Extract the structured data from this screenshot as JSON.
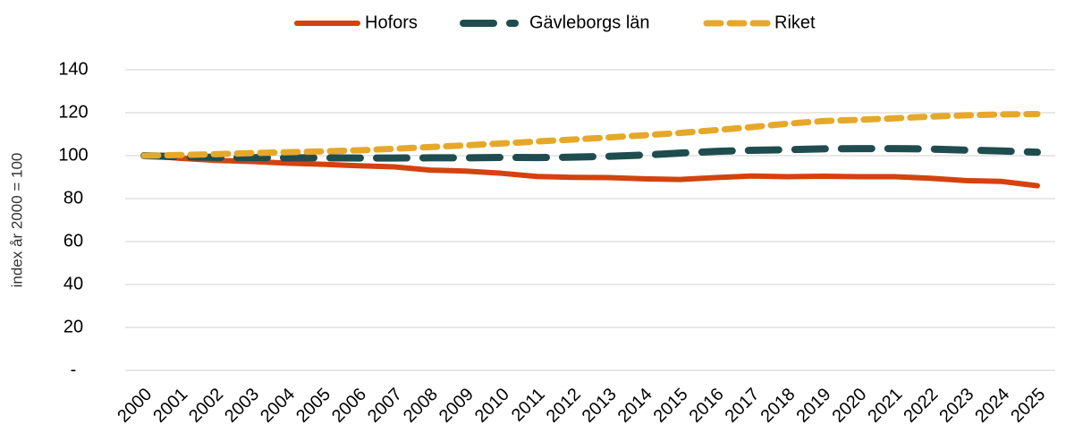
{
  "chart_data": {
    "type": "line",
    "y_label": "index år 2000 = 100",
    "categories": [
      "2000",
      "2001",
      "2002",
      "2003",
      "2004",
      "2005",
      "2006",
      "2007",
      "2008",
      "2009",
      "2010",
      "2011",
      "2012",
      "2013",
      "2014",
      "2015",
      "2016",
      "2017",
      "2018",
      "2019",
      "2020",
      "2021",
      "2022",
      "2023",
      "2024",
      "2025"
    ],
    "series": [
      {
        "name": "Hofors",
        "color": "#d4420f",
        "values": [
          100,
          98.8,
          97.8,
          97.3,
          96.5,
          96,
          95.3,
          94.8,
          93.3,
          92.8,
          91.8,
          90.3,
          89.9,
          89.8,
          89.2,
          88.9,
          89.8,
          90.5,
          90.2,
          90.4,
          90.2,
          90.2,
          89.5,
          88.4,
          88.0,
          86.0
        ]
      },
      {
        "name": "Gävleborgs län",
        "color": "#1f4d4f",
        "values": [
          100,
          99.5,
          99.2,
          99.1,
          99,
          99,
          98.9,
          98.9,
          99,
          99,
          99.2,
          99.1,
          99.3,
          99.7,
          100.3,
          101.2,
          102,
          102.5,
          102.8,
          103.2,
          103.3,
          103.3,
          103.1,
          102.6,
          102.2,
          101.6
        ]
      },
      {
        "name": "Riket",
        "color": "#e6a82a",
        "values": [
          100,
          100.3,
          100.7,
          101.2,
          101.6,
          102,
          102.5,
          103.2,
          104,
          104.8,
          105.7,
          106.6,
          107.5,
          108.5,
          109.5,
          110.6,
          111.9,
          113.3,
          114.9,
          116.1,
          116.7,
          117.4,
          118.2,
          118.8,
          119.2,
          119.4
        ]
      }
    ],
    "ylim": [
      0,
      140
    ],
    "yticks": [
      {
        "value": 0,
        "label": "-"
      },
      20,
      40,
      60,
      80,
      100,
      120,
      140
    ],
    "grid": true,
    "legend": "top"
  }
}
